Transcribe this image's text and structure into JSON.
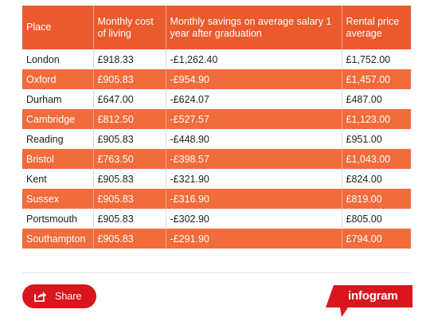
{
  "table": {
    "headers": [
      "Place",
      "Monthly cost of living",
      "Monthly savings on average salary 1 year after graduation",
      "Rental price average"
    ],
    "rows": [
      [
        "London",
        "£918.33",
        "-£1,262.40",
        "£1,752.00"
      ],
      [
        "Oxford",
        "£905.83",
        "-£954.90",
        "£1,457.00"
      ],
      [
        "Durham",
        "£647.00",
        "-£624.07",
        "£487.00"
      ],
      [
        "Cambridge",
        "£812.50",
        "-£527.57",
        "£1,123.00"
      ],
      [
        "Reading",
        "£905.83",
        "-£448.90",
        "£951.00"
      ],
      [
        "Bristol",
        "£763.50",
        "-£398.57",
        "£1,043.00"
      ],
      [
        "Kent",
        "£905.83",
        "-£321.90",
        "£824.00"
      ],
      [
        "Sussex",
        "£905.83",
        "-£316.90",
        "£819.00"
      ],
      [
        "Portsmouth",
        "£905.83",
        "-£302.90",
        "£805.00"
      ],
      [
        "Southampton",
        "£905.83",
        "-£291.90",
        "£794.00"
      ]
    ]
  },
  "footer": {
    "share_label": "Share",
    "share_icon": "share-icon",
    "brand_label": "infogram"
  },
  "colors": {
    "header_bg": "#ea5a2c",
    "stripe_bg": "#f26b3b",
    "share_bg": "#d9161c",
    "brand_bg": "#d9161c"
  }
}
